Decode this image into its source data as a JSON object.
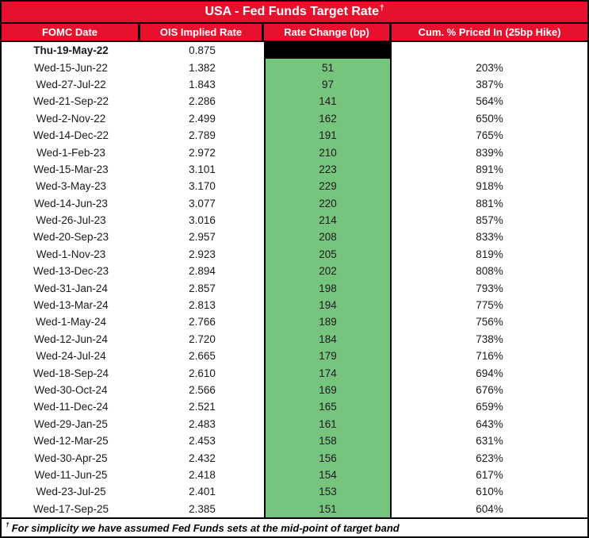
{
  "dagger_symbol": "†",
  "footnote": "For simplicity we have assumed Fed Funds sets at the mid-point of target band",
  "colors": {
    "header_red": "#E8112D",
    "change_green": "#77C47F",
    "first_change_cell_black": "#000000"
  },
  "chart_data": {
    "type": "table",
    "title": "USA - Fed Funds Target Rate",
    "columns": [
      "FOMC Date",
      "OIS Implied Rate",
      "Rate Change (bp)",
      "Cum. % Priced In (25bp Hike)"
    ],
    "rows": [
      {
        "date": "Thu-19-May-22",
        "ois": "0.875",
        "change": "",
        "cum": "",
        "bold": true,
        "change_cell": "black"
      },
      {
        "date": "Wed-15-Jun-22",
        "ois": "1.382",
        "change": "51",
        "cum": "203%"
      },
      {
        "date": "Wed-27-Jul-22",
        "ois": "1.843",
        "change": "97",
        "cum": "387%"
      },
      {
        "date": "Wed-21-Sep-22",
        "ois": "2.286",
        "change": "141",
        "cum": "564%"
      },
      {
        "date": "Wed-2-Nov-22",
        "ois": "2.499",
        "change": "162",
        "cum": "650%"
      },
      {
        "date": "Wed-14-Dec-22",
        "ois": "2.789",
        "change": "191",
        "cum": "765%"
      },
      {
        "date": "Wed-1-Feb-23",
        "ois": "2.972",
        "change": "210",
        "cum": "839%"
      },
      {
        "date": "Wed-15-Mar-23",
        "ois": "3.101",
        "change": "223",
        "cum": "891%"
      },
      {
        "date": "Wed-3-May-23",
        "ois": "3.170",
        "change": "229",
        "cum": "918%"
      },
      {
        "date": "Wed-14-Jun-23",
        "ois": "3.077",
        "change": "220",
        "cum": "881%"
      },
      {
        "date": "Wed-26-Jul-23",
        "ois": "3.016",
        "change": "214",
        "cum": "857%"
      },
      {
        "date": "Wed-20-Sep-23",
        "ois": "2.957",
        "change": "208",
        "cum": "833%"
      },
      {
        "date": "Wed-1-Nov-23",
        "ois": "2.923",
        "change": "205",
        "cum": "819%"
      },
      {
        "date": "Wed-13-Dec-23",
        "ois": "2.894",
        "change": "202",
        "cum": "808%"
      },
      {
        "date": "Wed-31-Jan-24",
        "ois": "2.857",
        "change": "198",
        "cum": "793%"
      },
      {
        "date": "Wed-13-Mar-24",
        "ois": "2.813",
        "change": "194",
        "cum": "775%"
      },
      {
        "date": "Wed-1-May-24",
        "ois": "2.766",
        "change": "189",
        "cum": "756%"
      },
      {
        "date": "Wed-12-Jun-24",
        "ois": "2.720",
        "change": "184",
        "cum": "738%"
      },
      {
        "date": "Wed-24-Jul-24",
        "ois": "2.665",
        "change": "179",
        "cum": "716%"
      },
      {
        "date": "Wed-18-Sep-24",
        "ois": "2.610",
        "change": "174",
        "cum": "694%"
      },
      {
        "date": "Wed-30-Oct-24",
        "ois": "2.566",
        "change": "169",
        "cum": "676%"
      },
      {
        "date": "Wed-11-Dec-24",
        "ois": "2.521",
        "change": "165",
        "cum": "659%"
      },
      {
        "date": "Wed-29-Jan-25",
        "ois": "2.483",
        "change": "161",
        "cum": "643%"
      },
      {
        "date": "Wed-12-Mar-25",
        "ois": "2.453",
        "change": "158",
        "cum": "631%"
      },
      {
        "date": "Wed-30-Apr-25",
        "ois": "2.432",
        "change": "156",
        "cum": "623%"
      },
      {
        "date": "Wed-11-Jun-25",
        "ois": "2.418",
        "change": "154",
        "cum": "617%"
      },
      {
        "date": "Wed-23-Jul-25",
        "ois": "2.401",
        "change": "153",
        "cum": "610%"
      },
      {
        "date": "Wed-17-Sep-25",
        "ois": "2.385",
        "change": "151",
        "cum": "604%"
      }
    ]
  }
}
